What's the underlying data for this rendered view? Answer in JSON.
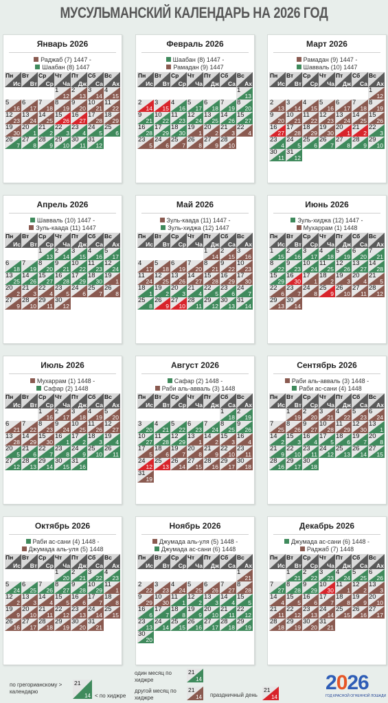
{
  "title": "МУСУЛЬМАНСКИЙ КАЛЕНДАРЬ НА 2026 ГОД",
  "colors": {
    "greg": "#8a5a50",
    "hijri": "#3f8a5c",
    "holiday": "#d8242b",
    "header_top": "#d8d8d8",
    "header_bottom": "#5a5a5a",
    "cell_top": "#e6e6e6"
  },
  "weekdays": [
    {
      "ru": "Пн",
      "mu": "Ис"
    },
    {
      "ru": "Вт",
      "mu": "Вт"
    },
    {
      "ru": "Ср",
      "mu": "Ср"
    },
    {
      "ru": "Чт",
      "mu": "Ча"
    },
    {
      "ru": "Пт",
      "mu": "Дж"
    },
    {
      "ru": "Сб",
      "mu": "Са"
    },
    {
      "ru": "Вс",
      "mu": "Ах"
    }
  ],
  "months": [
    {
      "name": "Январь 2026",
      "hijri": [
        {
          "text": "Раджаб (7) 1447 -",
          "color": "brown"
        },
        {
          "text": "Шаабан (8) 1447",
          "color": "green"
        }
      ],
      "first_weekday": 3,
      "days": 31,
      "hijri_start": 12,
      "hijri_len": 30,
      "holidays": [
        15,
        16
      ]
    },
    {
      "name": "Февраль 2026",
      "hijri": [
        {
          "text": "Шаабан (8) 1447 -",
          "color": "green"
        },
        {
          "text": "Рамадан (9) 1447",
          "color": "brown"
        }
      ],
      "first_weekday": 6,
      "days": 28,
      "hijri_start": 13,
      "hijri_len": 30,
      "holidays": [
        2,
        3
      ]
    },
    {
      "name": "Март 2026",
      "hijri": [
        {
          "text": "Рамадан (9) 1447 -",
          "color": "brown"
        },
        {
          "text": "Шавваль (10) 1447",
          "color": "green"
        }
      ],
      "first_weekday": 6,
      "days": 31,
      "hijri_start": 12,
      "hijri_len": 30,
      "holidays": [
        16,
        20,
        21
      ]
    },
    {
      "name": "Апрель 2026",
      "hijri": [
        {
          "text": "Шавваль (10) 1447 -",
          "color": "green"
        },
        {
          "text": "Зуль-каада (11) 1447",
          "color": "brown"
        }
      ],
      "first_weekday": 2,
      "days": 30,
      "hijri_start": 13,
      "hijri_len": 30,
      "holidays": []
    },
    {
      "name": "Май 2026",
      "hijri": [
        {
          "text": "Зуль-каада (11) 1447 -",
          "color": "brown"
        },
        {
          "text": "Зуль-хиджа (12) 1447",
          "color": "green"
        }
      ],
      "first_weekday": 4,
      "days": 31,
      "hijri_start": 14,
      "hijri_len": 30,
      "holidays": [
        26,
        27
      ]
    },
    {
      "name": "Июнь 2026",
      "hijri": [
        {
          "text": "Зуль-хиджа (12) 1447 -",
          "color": "green"
        },
        {
          "text": "Мухаррам (1) 1448",
          "color": "brown"
        }
      ],
      "first_weekday": 0,
      "days": 30,
      "hijri_start": 15,
      "hijri_len": 30,
      "holidays": [
        16,
        25
      ]
    },
    {
      "name": "Июль 2026",
      "hijri": [
        {
          "text": "Мухаррам (1) 1448 -",
          "color": "brown"
        },
        {
          "text": "Сафар (2) 1448",
          "color": "green"
        }
      ],
      "first_weekday": 2,
      "days": 31,
      "hijri_start": 16,
      "hijri_len": 30,
      "holidays": []
    },
    {
      "name": "Август 2026",
      "hijri": [
        {
          "text": "Сафар (2) 1448 -",
          "color": "green"
        },
        {
          "text": "Раби аль-авваль (3) 1448",
          "color": "brown"
        }
      ],
      "first_weekday": 5,
      "days": 31,
      "hijri_start": 18,
      "hijri_len": 29,
      "holidays": [
        24,
        25
      ]
    },
    {
      "name": "Сентябрь 2026",
      "hijri": [
        {
          "text": "Раби аль-авваль (3) 1448 -",
          "color": "brown"
        },
        {
          "text": "Раби ас-сани (4) 1448",
          "color": "green"
        }
      ],
      "first_weekday": 1,
      "days": 30,
      "hijri_start": 19,
      "hijri_len": 30,
      "holidays": []
    },
    {
      "name": "Октябрь 2026",
      "hijri": [
        {
          "text": "Раби ас-сани (4) 1448 -",
          "color": "green"
        },
        {
          "text": "Джумада аль-уля (5) 1448",
          "color": "brown"
        }
      ],
      "first_weekday": 3,
      "days": 31,
      "hijri_start": 20,
      "hijri_len": 29,
      "holidays": []
    },
    {
      "name": "Ноябрь 2026",
      "hijri": [
        {
          "text": "Джумада аль-уля (5) 1448 -",
          "color": "brown"
        },
        {
          "text": "Джумада ас-сани (6) 1448",
          "color": "green"
        }
      ],
      "first_weekday": 6,
      "days": 30,
      "hijri_start": 21,
      "hijri_len": 30,
      "holidays": []
    },
    {
      "name": "Декабрь 2026",
      "hijri": [
        {
          "text": "Джумада ас-сани (6) 1448 -",
          "color": "green"
        },
        {
          "text": "Раджаб (7) 1448",
          "color": "brown"
        }
      ],
      "first_weekday": 1,
      "days": 31,
      "hijri_start": 21,
      "hijri_len": 30,
      "holidays": [
        10
      ]
    }
  ],
  "legend": {
    "gregorian": "по грегорианскому > календарю",
    "hijri": "< по хиджре",
    "one_month": "один месяц по хиджре",
    "other_month": "другой месяц по хиджре",
    "holiday": "праздничный день",
    "sample_g": "21",
    "sample_h": "14"
  },
  "logo": {
    "year_a": "2",
    "year_zero": "0",
    "year_b": "26",
    "caption": "ГОД КРАСНОЙ ОГНЕННОЙ ЛОШАДИ"
  }
}
